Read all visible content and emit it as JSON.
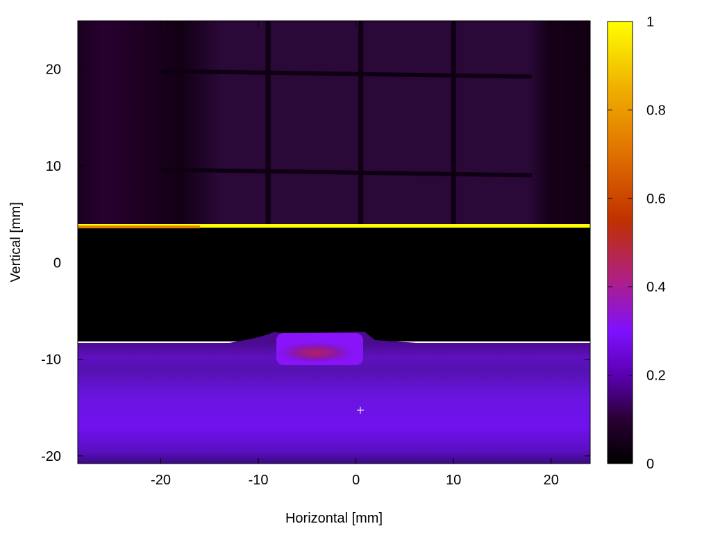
{
  "chart_data": {
    "type": "heatmap",
    "title": "",
    "xlabel": "Horizontal [mm]",
    "ylabel": "Vertical [mm]",
    "xlim": [
      -28.5,
      24
    ],
    "ylim": [
      -20.8,
      25
    ],
    "xticks": [
      -20,
      -10,
      0,
      10,
      20
    ],
    "yticks": [
      -20,
      -10,
      0,
      10,
      20
    ],
    "colorbar": {
      "range": [
        0,
        1
      ],
      "ticks": [
        0,
        0.2,
        0.4,
        0.6,
        0.8,
        1
      ],
      "tick_labels": [
        "0",
        "0.2",
        "0.4",
        "0.6",
        "0.8",
        "1"
      ],
      "colormap": [
        "#000000",
        "#2a0033",
        "#5a00b0",
        "#7f10ff",
        "#b02080",
        "#c03000",
        "#e07000",
        "#f0b000",
        "#ffff00"
      ]
    },
    "features": {
      "bright_line_y": 3.7,
      "upper_background_level": 0.05,
      "upper_grid_x": [
        -9,
        0.5,
        10
      ],
      "upper_grid_y": [
        19.8,
        9.6
      ],
      "dark_gap_y": [
        -8.2,
        3.5
      ],
      "lower_band_y": [
        -20.8,
        -8.2
      ],
      "lower_band_level": 0.22,
      "hot_spot": {
        "x": -4,
        "y": -9.3,
        "value": 0.45
      },
      "marker": {
        "x": 0.4,
        "y": -15.3
      }
    }
  }
}
